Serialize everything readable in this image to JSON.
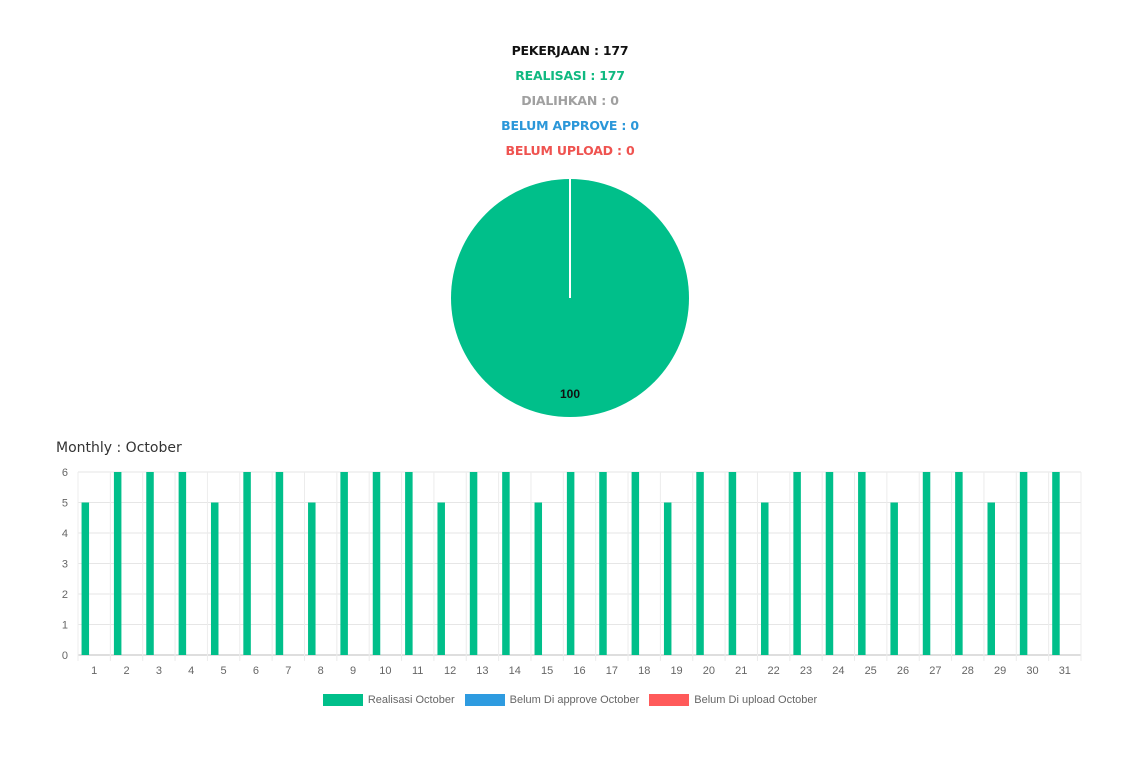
{
  "summary": {
    "pekerjaan": {
      "text": "PEKERJAAN : 177",
      "color": "#111111"
    },
    "realisasi": {
      "text": "REALISASI : 177",
      "color": "#10b981"
    },
    "dialihkan": {
      "text": "DIALIHKAN : 0",
      "color": "#a0a0a0"
    },
    "belum_approve": {
      "text": "BELUM APPROVE : 0",
      "color": "#2b97d9"
    },
    "belum_upload": {
      "text": "BELUM UPLOAD : 0",
      "color": "#ef5350"
    }
  },
  "chart_data": [
    {
      "type": "pie",
      "slices": [
        {
          "name": "Realisasi",
          "value": 100,
          "color": "#00bf8a"
        }
      ],
      "data_labels": [
        "100"
      ]
    },
    {
      "type": "bar",
      "title": "Monthly : October",
      "categories": [
        "1",
        "2",
        "3",
        "4",
        "5",
        "6",
        "7",
        "8",
        "9",
        "10",
        "11",
        "12",
        "13",
        "14",
        "15",
        "16",
        "17",
        "18",
        "19",
        "20",
        "21",
        "22",
        "23",
        "24",
        "25",
        "26",
        "27",
        "28",
        "29",
        "30",
        "31"
      ],
      "series": [
        {
          "name": "Realisasi October",
          "color": "#00bf8a",
          "values": [
            5,
            6,
            6,
            6,
            5,
            6,
            6,
            5,
            6,
            6,
            6,
            5,
            6,
            6,
            5,
            6,
            6,
            6,
            5,
            6,
            6,
            5,
            6,
            6,
            6,
            5,
            6,
            6,
            5,
            6,
            6
          ]
        },
        {
          "name": "Belum Di approve October",
          "color": "#2e9be0",
          "values": [
            0,
            0,
            0,
            0,
            0,
            0,
            0,
            0,
            0,
            0,
            0,
            0,
            0,
            0,
            0,
            0,
            0,
            0,
            0,
            0,
            0,
            0,
            0,
            0,
            0,
            0,
            0,
            0,
            0,
            0,
            0
          ]
        },
        {
          "name": "Belum Di upload October",
          "color": "#ff5a5a",
          "values": [
            0,
            0,
            0,
            0,
            0,
            0,
            0,
            0,
            0,
            0,
            0,
            0,
            0,
            0,
            0,
            0,
            0,
            0,
            0,
            0,
            0,
            0,
            0,
            0,
            0,
            0,
            0,
            0,
            0,
            0,
            0
          ]
        }
      ],
      "yticks": [
        "0",
        "1",
        "2",
        "3",
        "4",
        "5",
        "6"
      ],
      "ylim": [
        0,
        6
      ],
      "grid": true,
      "legend": "bottom"
    }
  ]
}
